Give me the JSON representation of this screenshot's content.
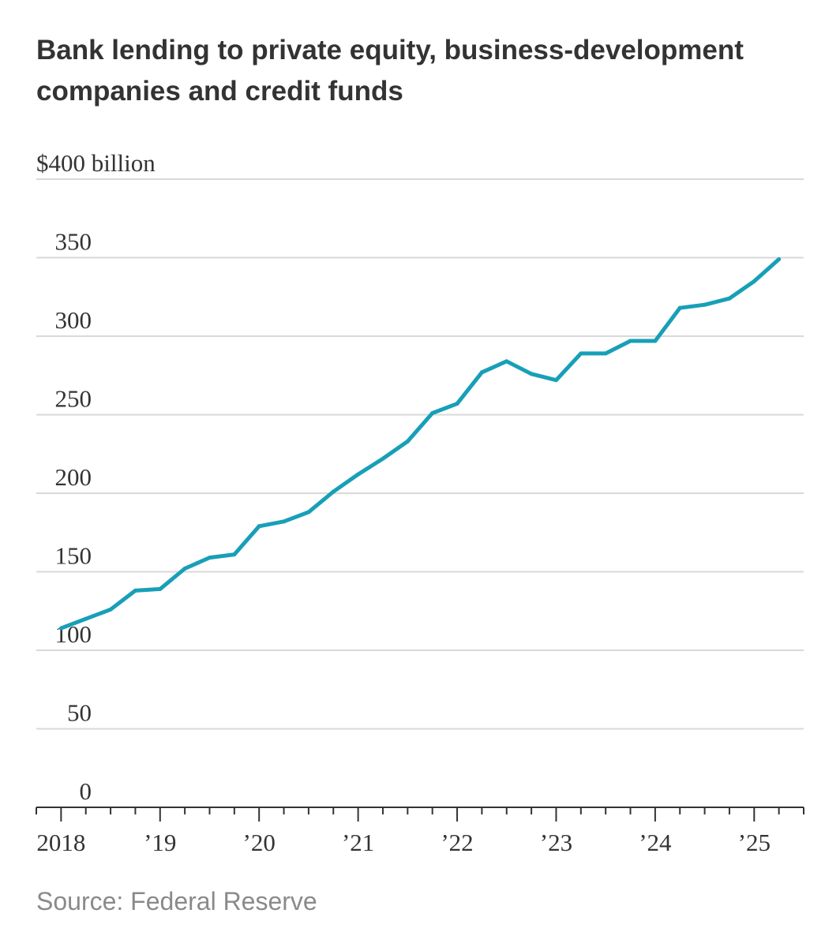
{
  "chart_data": {
    "type": "line",
    "title": "Bank lending to private equity, business-development companies and credit funds",
    "y_unit_label": "$400 billion",
    "yticks": [
      0,
      50,
      100,
      150,
      200,
      250,
      300,
      350,
      400
    ],
    "ytick_labels": [
      "0",
      "50",
      "100",
      "150",
      "200",
      "250",
      "300",
      "350",
      "$400 billion"
    ],
    "ylim": [
      0,
      400
    ],
    "x_range": [
      2017.75,
      2025.5
    ],
    "xticks": [
      2018,
      2019,
      2020,
      2021,
      2022,
      2023,
      2024,
      2025
    ],
    "xtick_labels": [
      "2018",
      "’19",
      "’20",
      "’21",
      "’22",
      "’23",
      "’24",
      "’25"
    ],
    "grid": true,
    "series": [
      {
        "color": "#189fb8",
        "points": [
          {
            "x": 2018.0,
            "y": 114
          },
          {
            "x": 2018.25,
            "y": 120
          },
          {
            "x": 2018.5,
            "y": 126
          },
          {
            "x": 2018.75,
            "y": 138
          },
          {
            "x": 2019.0,
            "y": 139
          },
          {
            "x": 2019.25,
            "y": 152
          },
          {
            "x": 2019.5,
            "y": 159
          },
          {
            "x": 2019.75,
            "y": 161
          },
          {
            "x": 2020.0,
            "y": 179
          },
          {
            "x": 2020.25,
            "y": 182
          },
          {
            "x": 2020.5,
            "y": 188
          },
          {
            "x": 2020.75,
            "y": 201
          },
          {
            "x": 2021.0,
            "y": 212
          },
          {
            "x": 2021.25,
            "y": 222
          },
          {
            "x": 2021.5,
            "y": 233
          },
          {
            "x": 2021.75,
            "y": 251
          },
          {
            "x": 2022.0,
            "y": 257
          },
          {
            "x": 2022.25,
            "y": 277
          },
          {
            "x": 2022.5,
            "y": 284
          },
          {
            "x": 2022.75,
            "y": 276
          },
          {
            "x": 2023.0,
            "y": 272
          },
          {
            "x": 2023.25,
            "y": 289
          },
          {
            "x": 2023.5,
            "y": 289
          },
          {
            "x": 2023.75,
            "y": 297
          },
          {
            "x": 2024.0,
            "y": 297
          },
          {
            "x": 2024.25,
            "y": 318
          },
          {
            "x": 2024.5,
            "y": 320
          },
          {
            "x": 2024.75,
            "y": 324
          },
          {
            "x": 2025.0,
            "y": 335
          },
          {
            "x": 2025.25,
            "y": 349
          }
        ]
      }
    ]
  },
  "source": "Source: Federal Reserve"
}
